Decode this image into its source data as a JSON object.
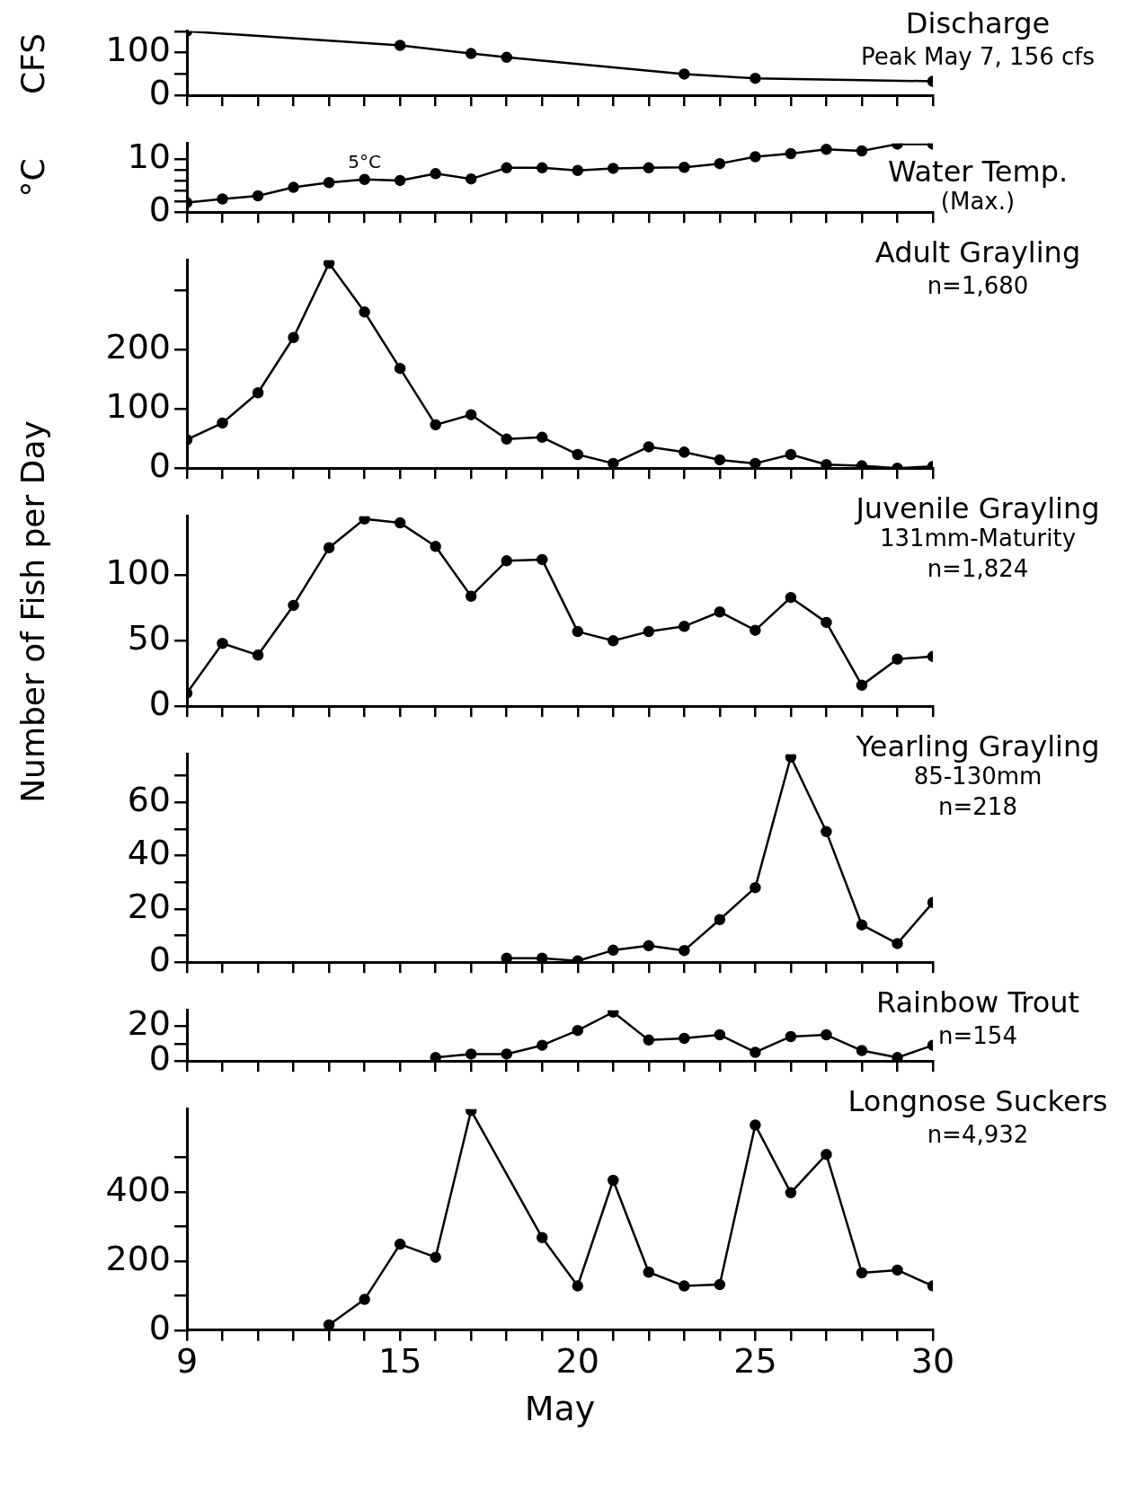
{
  "chart_data": [
    {
      "type": "line",
      "title": "Discharge",
      "ylabel": "CFS",
      "annotations": [
        "Peak May 7, 156 cfs"
      ],
      "xlim": [
        9,
        30
      ],
      "ylim": [
        0,
        150
      ],
      "yticks": [
        0,
        {
          "value": 50,
          "label": null
        },
        100,
        {
          "value": 150,
          "label": null
        }
      ],
      "xticks": [
        9,
        {
          "value": 10,
          "label": null
        },
        {
          "value": 11,
          "label": null
        },
        {
          "value": 12,
          "label": null
        },
        {
          "value": 13,
          "label": null
        },
        {
          "value": 14,
          "label": null
        },
        15,
        {
          "value": 16,
          "label": null
        },
        {
          "value": 17,
          "label": null
        },
        {
          "value": 18,
          "label": null
        },
        {
          "value": 19,
          "label": null
        },
        20,
        {
          "value": 21,
          "label": null
        },
        {
          "value": 22,
          "label": null
        },
        {
          "value": 23,
          "label": null
        },
        {
          "value": 24,
          "label": null
        },
        25,
        {
          "value": 26,
          "label": null
        },
        {
          "value": 27,
          "label": null
        },
        {
          "value": 28,
          "label": null
        },
        {
          "value": 29,
          "label": null
        },
        30
      ],
      "tick_labels": "y",
      "grid": false,
      "legend": false,
      "marker": "circle",
      "line_style": "solid",
      "series": [
        {
          "color": "#000000",
          "x": [
            9,
            15,
            17,
            18,
            23,
            25,
            30
          ],
          "values": [
            150,
            117,
            98,
            89,
            50,
            40,
            33
          ]
        }
      ]
    },
    {
      "type": "line",
      "title": "Water Temp.",
      "subtitle": "(Max.)",
      "ylabel": "°C",
      "annotations": [
        {
          "text": "5°C",
          "x": 14,
          "y": 6.2
        }
      ],
      "xlim": [
        9,
        30
      ],
      "ylim": [
        0,
        13
      ],
      "yticks": [
        0,
        {
          "value": 2,
          "label": null
        },
        {
          "value": 4,
          "label": null
        },
        {
          "value": 6,
          "label": null
        },
        {
          "value": 8,
          "label": null
        },
        10
      ],
      "xticks": [
        9,
        {
          "value": 10,
          "label": null
        },
        {
          "value": 11,
          "label": null
        },
        {
          "value": 12,
          "label": null
        },
        {
          "value": 13,
          "label": null
        },
        {
          "value": 14,
          "label": null
        },
        15,
        {
          "value": 16,
          "label": null
        },
        {
          "value": 17,
          "label": null
        },
        {
          "value": 18,
          "label": null
        },
        {
          "value": 19,
          "label": null
        },
        20,
        {
          "value": 21,
          "label": null
        },
        {
          "value": 22,
          "label": null
        },
        {
          "value": 23,
          "label": null
        },
        {
          "value": 24,
          "label": null
        },
        25,
        {
          "value": 26,
          "label": null
        },
        {
          "value": 27,
          "label": null
        },
        {
          "value": 28,
          "label": null
        },
        {
          "value": 29,
          "label": null
        },
        30
      ],
      "tick_labels": "y",
      "grid": false,
      "legend": false,
      "marker": "circle",
      "line_style": "solid",
      "series": [
        {
          "color": "#000000",
          "x": [
            9,
            10,
            11,
            12,
            13,
            14,
            15,
            16,
            17,
            18,
            19,
            20,
            21,
            22,
            23,
            24,
            25,
            26,
            27,
            28,
            29,
            30
          ],
          "values": [
            1.8,
            2.5,
            3.1,
            4.7,
            5.6,
            6.2,
            6.0,
            7.3,
            6.3,
            8.4,
            8.4,
            7.9,
            8.3,
            8.4,
            8.5,
            9.2,
            10.5,
            11.1,
            11.9,
            11.6,
            12.9,
            12.9
          ]
        }
      ]
    },
    {
      "type": "line",
      "title": "Adult Grayling",
      "annotations": [
        "n=1,680"
      ],
      "xlim": [
        9,
        30
      ],
      "ylim": [
        0,
        350
      ],
      "yticks": [
        0,
        100,
        200,
        {
          "value": 300,
          "label": null
        }
      ],
      "xticks": [
        9,
        {
          "value": 10,
          "label": null
        },
        {
          "value": 11,
          "label": null
        },
        {
          "value": 12,
          "label": null
        },
        {
          "value": 13,
          "label": null
        },
        {
          "value": 14,
          "label": null
        },
        15,
        {
          "value": 16,
          "label": null
        },
        {
          "value": 17,
          "label": null
        },
        {
          "value": 18,
          "label": null
        },
        {
          "value": 19,
          "label": null
        },
        20,
        {
          "value": 21,
          "label": null
        },
        {
          "value": 22,
          "label": null
        },
        {
          "value": 23,
          "label": null
        },
        {
          "value": 24,
          "label": null
        },
        25,
        {
          "value": 26,
          "label": null
        },
        {
          "value": 27,
          "label": null
        },
        {
          "value": 28,
          "label": null
        },
        {
          "value": 29,
          "label": null
        },
        30
      ],
      "tick_labels": "y",
      "grid": false,
      "legend": false,
      "marker": "circle",
      "line_style": "solid",
      "series": [
        {
          "color": "#000000",
          "x": [
            9,
            10,
            11,
            12,
            13,
            14,
            15,
            16,
            17,
            18,
            19,
            20,
            21,
            22,
            23,
            24,
            25,
            26,
            27,
            28,
            29,
            30
          ],
          "values": [
            48,
            76,
            127,
            220,
            345,
            263,
            168,
            73,
            90,
            49,
            52,
            23,
            8,
            36,
            27,
            14,
            8,
            23,
            6,
            4,
            0,
            3
          ]
        }
      ]
    },
    {
      "type": "line",
      "title": "Juvenile Grayling",
      "subtitle": "131mm-Maturity",
      "ylabel": "Number of Fish per Day",
      "annotations": [
        "n=1,824"
      ],
      "xlim": [
        9,
        30
      ],
      "ylim": [
        0,
        145
      ],
      "yticks": [
        0,
        50,
        100
      ],
      "xticks": [
        9,
        {
          "value": 10,
          "label": null
        },
        {
          "value": 11,
          "label": null
        },
        {
          "value": 12,
          "label": null
        },
        {
          "value": 13,
          "label": null
        },
        {
          "value": 14,
          "label": null
        },
        15,
        {
          "value": 16,
          "label": null
        },
        {
          "value": 17,
          "label": null
        },
        {
          "value": 18,
          "label": null
        },
        {
          "value": 19,
          "label": null
        },
        20,
        {
          "value": 21,
          "label": null
        },
        {
          "value": 22,
          "label": null
        },
        {
          "value": 23,
          "label": null
        },
        {
          "value": 24,
          "label": null
        },
        25,
        {
          "value": 26,
          "label": null
        },
        {
          "value": 27,
          "label": null
        },
        {
          "value": 28,
          "label": null
        },
        {
          "value": 29,
          "label": null
        },
        30
      ],
      "tick_labels": "y",
      "grid": false,
      "legend": false,
      "marker": "circle",
      "line_style": "solid",
      "series": [
        {
          "color": "#000000",
          "x": [
            9,
            10,
            11,
            12,
            13,
            14,
            15,
            16,
            17,
            18,
            19,
            20,
            21,
            22,
            23,
            24,
            25,
            26,
            27,
            28,
            29,
            30
          ],
          "values": [
            10,
            48,
            39,
            77,
            121,
            143,
            140,
            122,
            84,
            111,
            112,
            57,
            50,
            57,
            61,
            72,
            58,
            83,
            64,
            16,
            36,
            38
          ]
        }
      ]
    },
    {
      "type": "line",
      "title": "Yearling Grayling",
      "subtitle": "85-130mm",
      "annotations": [
        "n=218"
      ],
      "xlim": [
        9,
        30
      ],
      "ylim": [
        0,
        78
      ],
      "yticks": [
        0,
        {
          "value": 10,
          "label": null
        },
        20,
        {
          "value": 30,
          "label": null
        },
        40,
        {
          "value": 50,
          "label": null
        },
        60,
        {
          "value": 70,
          "label": null
        }
      ],
      "xticks": [
        9,
        {
          "value": 10,
          "label": null
        },
        {
          "value": 11,
          "label": null
        },
        {
          "value": 12,
          "label": null
        },
        {
          "value": 13,
          "label": null
        },
        {
          "value": 14,
          "label": null
        },
        15,
        {
          "value": 16,
          "label": null
        },
        {
          "value": 17,
          "label": null
        },
        {
          "value": 18,
          "label": null
        },
        {
          "value": 19,
          "label": null
        },
        20,
        {
          "value": 21,
          "label": null
        },
        {
          "value": 22,
          "label": null
        },
        {
          "value": 23,
          "label": null
        },
        {
          "value": 24,
          "label": null
        },
        25,
        {
          "value": 26,
          "label": null
        },
        {
          "value": 27,
          "label": null
        },
        {
          "value": 28,
          "label": null
        },
        {
          "value": 29,
          "label": null
        },
        30
      ],
      "tick_labels": "y",
      "grid": false,
      "legend": false,
      "marker": "circle",
      "line_style": "solid",
      "series": [
        {
          "color": "#000000",
          "x": [
            18,
            19,
            20,
            21,
            22,
            23,
            24,
            25,
            26,
            27,
            28,
            29,
            30
          ],
          "values": [
            1.5,
            1.5,
            0.5,
            4.5,
            6.2,
            4.4,
            16,
            28,
            77,
            49,
            14,
            7,
            22.4
          ]
        }
      ]
    },
    {
      "type": "line",
      "title": "Rainbow Trout",
      "annotations": [
        "n=154"
      ],
      "xlim": [
        9,
        30
      ],
      "ylim": [
        0,
        29
      ],
      "yticks": [
        0,
        {
          "value": 10,
          "label": null
        },
        20
      ],
      "xticks": [
        9,
        {
          "value": 10,
          "label": null
        },
        {
          "value": 11,
          "label": null
        },
        {
          "value": 12,
          "label": null
        },
        {
          "value": 13,
          "label": null
        },
        {
          "value": 14,
          "label": null
        },
        15,
        {
          "value": 16,
          "label": null
        },
        {
          "value": 17,
          "label": null
        },
        {
          "value": 18,
          "label": null
        },
        {
          "value": 19,
          "label": null
        },
        20,
        {
          "value": 21,
          "label": null
        },
        {
          "value": 22,
          "label": null
        },
        {
          "value": 23,
          "label": null
        },
        {
          "value": 24,
          "label": null
        },
        25,
        {
          "value": 26,
          "label": null
        },
        {
          "value": 27,
          "label": null
        },
        {
          "value": 28,
          "label": null
        },
        {
          "value": 29,
          "label": null
        },
        30
      ],
      "tick_labels": "y",
      "grid": false,
      "legend": false,
      "marker": "circle",
      "line_style": "solid",
      "series": [
        {
          "color": "#000000",
          "x": [
            16,
            17,
            18,
            19,
            20,
            21,
            22,
            23,
            24,
            25,
            26,
            27,
            28,
            29,
            30
          ],
          "values": [
            2,
            4,
            4,
            9,
            17.5,
            28,
            12,
            13,
            15,
            5,
            14,
            15,
            6,
            2,
            9
          ]
        }
      ]
    },
    {
      "type": "line",
      "title": "Longnose Suckers",
      "annotations": [
        "n=4,932"
      ],
      "xlabel": "May",
      "xlim": [
        9,
        30
      ],
      "ylim": [
        0,
        640
      ],
      "yticks": [
        0,
        {
          "value": 100,
          "label": null
        },
        200,
        {
          "value": 300,
          "label": null
        },
        400,
        {
          "value": 500,
          "label": null
        }
      ],
      "xticks": [
        9,
        {
          "value": 10,
          "label": null
        },
        {
          "value": 11,
          "label": null
        },
        {
          "value": 12,
          "label": null
        },
        {
          "value": 13,
          "label": null
        },
        {
          "value": 14,
          "label": null
        },
        15,
        {
          "value": 16,
          "label": null
        },
        {
          "value": 17,
          "label": null
        },
        {
          "value": 18,
          "label": null
        },
        {
          "value": 19,
          "label": null
        },
        20,
        {
          "value": 21,
          "label": null
        },
        {
          "value": 22,
          "label": null
        },
        {
          "value": 23,
          "label": null
        },
        {
          "value": 24,
          "label": null
        },
        25,
        {
          "value": 26,
          "label": null
        },
        {
          "value": 27,
          "label": null
        },
        {
          "value": 28,
          "label": null
        },
        {
          "value": 29,
          "label": null
        },
        30
      ],
      "grid": false,
      "legend": false,
      "marker": "circle",
      "line_style": "solid",
      "series": [
        {
          "color": "#000000",
          "x": [
            13,
            14,
            15,
            16,
            17,
            19,
            20,
            21,
            22,
            23,
            24,
            25,
            26,
            27,
            28,
            29,
            30
          ],
          "values": [
            15,
            89,
            249,
            211,
            636,
            268,
            128,
            434,
            168,
            128,
            132,
            594,
            398,
            509,
            166,
            174,
            128
          ]
        }
      ]
    }
  ]
}
